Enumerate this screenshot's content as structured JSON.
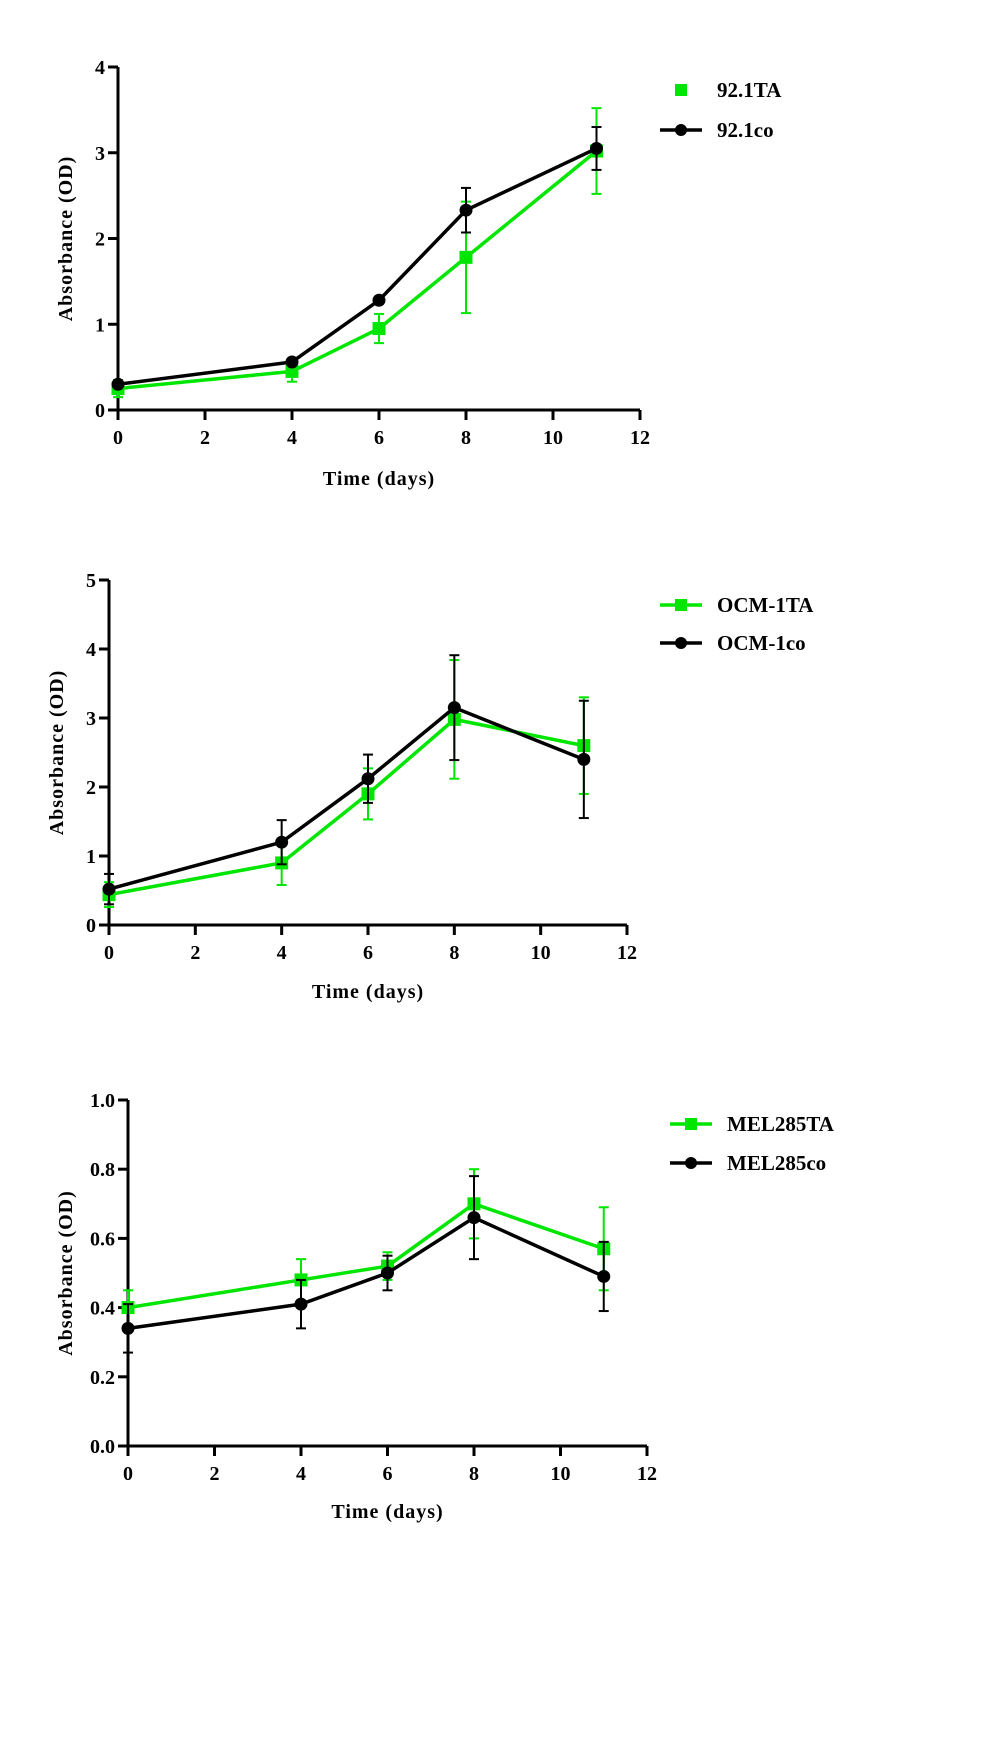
{
  "colors": {
    "green": "#00e600",
    "black": "#000000"
  },
  "chart_data": [
    {
      "type": "line",
      "title": "",
      "xlabel": "Time (days)",
      "ylabel": "Absorbance (OD)",
      "xlim": [
        0,
        12
      ],
      "ylim": [
        0,
        4
      ],
      "xticks": [
        0,
        2,
        4,
        6,
        8,
        10,
        12
      ],
      "yticks": [
        0,
        1,
        2,
        3,
        4
      ],
      "ytick_labels": [
        "0",
        "1",
        "2",
        "3",
        "4"
      ],
      "grid": false,
      "legend_position": "top-right",
      "x": [
        0,
        4,
        6,
        8,
        11
      ],
      "series": [
        {
          "name": "92.1TA",
          "color": "#00e600",
          "marker": "square",
          "legend_line": false,
          "values": [
            0.25,
            0.45,
            0.95,
            1.78,
            3.02
          ],
          "errors": [
            0.1,
            0.12,
            0.17,
            0.65,
            0.5
          ]
        },
        {
          "name": "92.1co",
          "color": "#000000",
          "marker": "circle",
          "legend_line": true,
          "values": [
            0.3,
            0.56,
            1.28,
            2.33,
            3.05
          ],
          "errors": [
            0.02,
            0.02,
            0.02,
            0.26,
            0.25
          ]
        }
      ]
    },
    {
      "type": "line",
      "title": "",
      "xlabel": "Time (days)",
      "ylabel": "Absorbance (OD)",
      "xlim": [
        0,
        12
      ],
      "ylim": [
        0,
        5
      ],
      "xticks": [
        0,
        2,
        4,
        6,
        8,
        10,
        12
      ],
      "yticks": [
        0,
        1,
        2,
        3,
        4,
        5
      ],
      "ytick_labels": [
        "0",
        "1",
        "2",
        "3",
        "4",
        "5"
      ],
      "grid": false,
      "legend_position": "top-right",
      "x": [
        0,
        4,
        6,
        8,
        11
      ],
      "series": [
        {
          "name": "OCM-1TA",
          "color": "#00e600",
          "marker": "square",
          "legend_line": true,
          "values": [
            0.44,
            0.9,
            1.9,
            2.98,
            2.6
          ],
          "errors": [
            0.18,
            0.32,
            0.37,
            0.86,
            0.7
          ]
        },
        {
          "name": "OCM-1co",
          "color": "#000000",
          "marker": "circle",
          "legend_line": true,
          "values": [
            0.52,
            1.2,
            2.12,
            3.15,
            2.4
          ],
          "errors": [
            0.22,
            0.32,
            0.35,
            0.76,
            0.85
          ]
        }
      ]
    },
    {
      "type": "line",
      "title": "",
      "xlabel": "Time (days)",
      "ylabel": "Absorbance (OD)",
      "xlim": [
        0,
        12
      ],
      "ylim": [
        0,
        1.0
      ],
      "xticks": [
        0,
        2,
        4,
        6,
        8,
        10,
        12
      ],
      "yticks": [
        0,
        0.2,
        0.4,
        0.6,
        0.8,
        1.0
      ],
      "ytick_labels": [
        "0.0",
        "0.2",
        "0.4",
        "0.6",
        "0.8",
        "1.0"
      ],
      "grid": false,
      "legend_position": "top-right",
      "x": [
        0,
        4,
        6,
        8,
        11
      ],
      "series": [
        {
          "name": "MEL285TA",
          "color": "#00e600",
          "marker": "square",
          "legend_line": true,
          "values": [
            0.4,
            0.48,
            0.52,
            0.7,
            0.57
          ],
          "errors": [
            0.05,
            0.06,
            0.04,
            0.1,
            0.12
          ]
        },
        {
          "name": "MEL285co",
          "color": "#000000",
          "marker": "circle",
          "legend_line": true,
          "values": [
            0.34,
            0.41,
            0.5,
            0.66,
            0.49
          ],
          "errors": [
            0.07,
            0.07,
            0.05,
            0.12,
            0.1
          ]
        }
      ]
    }
  ]
}
